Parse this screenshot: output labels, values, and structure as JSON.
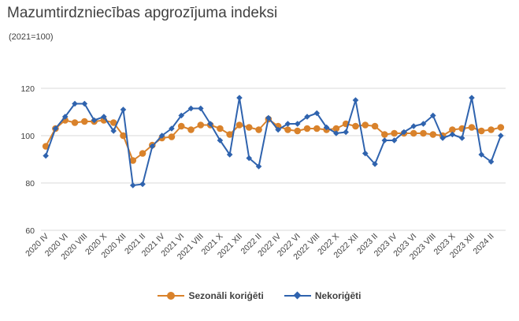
{
  "chart_data": {
    "type": "line",
    "title": "Mazumtirdzniecības apgrozījuma indeksi",
    "subtitle": "(2021=100)",
    "xlabel": "",
    "ylabel": "",
    "ylim": [
      60,
      120
    ],
    "yticks": [
      60,
      80,
      100,
      120
    ],
    "grid": true,
    "legend_position": "bottom",
    "categories": [
      "2020 IV",
      "2020 V",
      "2020 VI",
      "2020 VII",
      "2020 VIII",
      "2020 IX",
      "2020 X",
      "2020 XI",
      "2020 XII",
      "2021 I",
      "2021 II",
      "2021 III",
      "2021 IV",
      "2021 V",
      "2021 VI",
      "2021 VII",
      "2021 VIII",
      "2021 IX",
      "2021 X",
      "2021 XI",
      "2021 XII",
      "2022 I",
      "2022 II",
      "2022 III",
      "2022 IV",
      "2022 V",
      "2022 VI",
      "2022 VII",
      "2022 VIII",
      "2022 IX",
      "2022 X",
      "2022 XI",
      "2022 XII",
      "2023 I",
      "2023 II",
      "2023 III",
      "2023 IV",
      "2023 V",
      "2023 VI",
      "2023 VII",
      "2023 VIII",
      "2023 IX",
      "2023 X",
      "2023 XI",
      "2023 XII",
      "2024 I",
      "2024 II",
      "2024 III"
    ],
    "tick_labels": [
      "2020 IV",
      "2020 VI",
      "2020 VIII",
      "2020 X",
      "2020 XII",
      "2021 II",
      "2021 IV",
      "2021 VI",
      "2021 VIII",
      "2021 X",
      "2021 XII",
      "2022 II",
      "2022 IV",
      "2022 VI",
      "2022 VIII",
      "2022 X",
      "2022 XII",
      "2023 II",
      "2023 IV",
      "2023 VI",
      "2023 VIII",
      "2023 X",
      "2023 XII",
      "2024 II"
    ],
    "series": [
      {
        "name": "Sezonāli koriģēti",
        "color": "#D9822B",
        "marker": "circle",
        "values": [
          95.5,
          103,
          106.5,
          105.5,
          106,
          106,
          106.5,
          105.5,
          100,
          89.5,
          92.5,
          96,
          99,
          99.5,
          104,
          102.5,
          104.5,
          104.5,
          103,
          100.5,
          104.5,
          103.5,
          102.5,
          107,
          104,
          102.5,
          102,
          103,
          103,
          102.5,
          103,
          105,
          104,
          104.5,
          104,
          100.5,
          101,
          101,
          101,
          101,
          100.5,
          100,
          102.5,
          103,
          103.5,
          102,
          102.5,
          103.5
        ]
      },
      {
        "name": "Nekoriģēti",
        "color": "#2F63AE",
        "marker": "diamond",
        "values": [
          91.5,
          103,
          108,
          113.5,
          113.5,
          106.5,
          108,
          102,
          111,
          79,
          79.5,
          95.5,
          100,
          103,
          108.5,
          111.5,
          111.5,
          105,
          98,
          92,
          116,
          90.5,
          87,
          107.5,
          102.5,
          105,
          105,
          108,
          109.5,
          103.5,
          101,
          101.5,
          115,
          92.5,
          88,
          98,
          98,
          101.5,
          104,
          105,
          108.5,
          99,
          100.5,
          99,
          116,
          92,
          89,
          100
        ]
      }
    ]
  }
}
